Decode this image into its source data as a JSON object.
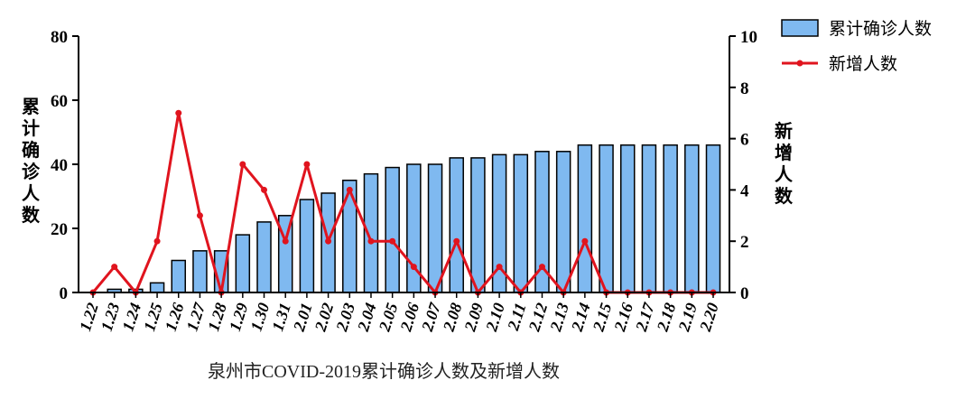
{
  "chart_data": {
    "type": "bar+line",
    "caption": "泉州市COVID-2019累计确诊人数及新增人数",
    "categories": [
      "1.22",
      "1.23",
      "1.24",
      "1.25",
      "1.26",
      "1.27",
      "1.28",
      "1.29",
      "1.30",
      "1.31",
      "2.01",
      "2.02",
      "2.03",
      "2.04",
      "2.05",
      "2.06",
      "2.07",
      "2.08",
      "2.09",
      "2.10",
      "2.11",
      "2.12",
      "2.13",
      "2.14",
      "2.15",
      "2.16",
      "2.17",
      "2.18",
      "2.19",
      "2.20"
    ],
    "series": [
      {
        "name": "累计确诊人数",
        "type": "bar",
        "axis": "left",
        "color": "#7fb9f0",
        "values": [
          0,
          1,
          1,
          3,
          10,
          13,
          13,
          18,
          22,
          24,
          29,
          31,
          35,
          37,
          39,
          40,
          40,
          42,
          42,
          43,
          43,
          44,
          44,
          46,
          46,
          46,
          46,
          46,
          46,
          46
        ]
      },
      {
        "name": "新增人数",
        "type": "line",
        "axis": "right",
        "color": "#e0141e",
        "values": [
          0,
          1,
          0,
          2,
          7,
          3,
          0,
          5,
          4,
          2,
          5,
          2,
          4,
          2,
          2,
          1,
          0,
          2,
          0,
          1,
          0,
          1,
          0,
          2,
          0,
          0,
          0,
          0,
          0,
          0
        ]
      }
    ],
    "y_left": {
      "label": "累计确诊人数",
      "range": [
        0,
        80
      ],
      "ticks": [
        0,
        20,
        40,
        60,
        80
      ]
    },
    "y_right": {
      "label": "新增人数",
      "range": [
        0,
        10
      ],
      "ticks": [
        0,
        2,
        4,
        6,
        8,
        10
      ]
    },
    "legend_position": "top-right",
    "grid": false
  }
}
